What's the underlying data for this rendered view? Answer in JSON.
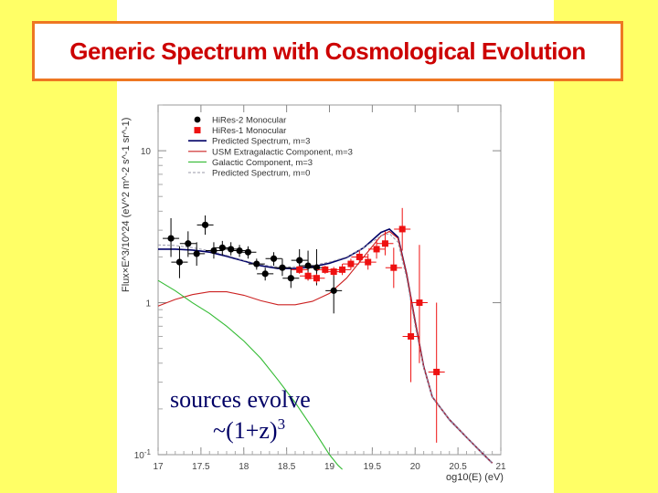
{
  "slide": {
    "title": "Generic Spectrum with Cosmological Evolution",
    "annotation_line1": "sources evolve",
    "annotation_line2": "~(1+z)",
    "annotation_sup": "3"
  },
  "colors": {
    "background": "#ffff66",
    "panel": "#ffffff",
    "title_text": "#cc0000",
    "title_border": "#ee7722",
    "hires2": "#000000",
    "hires1": "#ee1111",
    "predicted_m3": "#000066",
    "usm_extragalactic": "#cc2222",
    "galactic": "#33bb33",
    "predicted_m0": "#9999aa"
  },
  "chart_data": {
    "type": "scatter",
    "title": "",
    "xlabel": "og10(E) (eV)",
    "ylabel": "Flux×E^3/10^24 (eV^2 m^-2 s^-1 sr^-1)",
    "xlim": [
      17,
      21
    ],
    "ylim": [
      0.1,
      20
    ],
    "y_scale": "log",
    "x_ticks": [
      "17",
      "17.5",
      "18",
      "18.5",
      "19",
      "19.5",
      "20",
      "20.5",
      "21"
    ],
    "y_ticks": [
      "10",
      "1",
      "10^-1"
    ],
    "legend_position": "top-left",
    "series": [
      {
        "name": "HiRes-2 Monocular",
        "kind": "points",
        "marker": "circle",
        "points": [
          {
            "x": 17.15,
            "y": 2.65,
            "lo": 2.0,
            "hi": 3.6
          },
          {
            "x": 17.25,
            "y": 1.85,
            "lo": 1.45,
            "hi": 2.35
          },
          {
            "x": 17.35,
            "y": 2.45,
            "lo": 2.0,
            "hi": 2.95
          },
          {
            "x": 17.45,
            "y": 2.1,
            "lo": 1.75,
            "hi": 2.5
          },
          {
            "x": 17.55,
            "y": 3.25,
            "lo": 2.8,
            "hi": 3.75
          },
          {
            "x": 17.65,
            "y": 2.2,
            "lo": 1.95,
            "hi": 2.5
          },
          {
            "x": 17.75,
            "y": 2.3,
            "lo": 2.05,
            "hi": 2.55
          },
          {
            "x": 17.85,
            "y": 2.25,
            "lo": 2.05,
            "hi": 2.5
          },
          {
            "x": 17.95,
            "y": 2.2,
            "lo": 2.0,
            "hi": 2.4
          },
          {
            "x": 18.05,
            "y": 2.15,
            "lo": 1.95,
            "hi": 2.35
          },
          {
            "x": 18.15,
            "y": 1.8,
            "lo": 1.65,
            "hi": 1.95
          },
          {
            "x": 18.25,
            "y": 1.55,
            "lo": 1.4,
            "hi": 1.7
          },
          {
            "x": 18.35,
            "y": 1.95,
            "lo": 1.75,
            "hi": 2.15
          },
          {
            "x": 18.45,
            "y": 1.7,
            "lo": 1.5,
            "hi": 1.95
          },
          {
            "x": 18.55,
            "y": 1.45,
            "lo": 1.25,
            "hi": 1.7
          },
          {
            "x": 18.65,
            "y": 1.9,
            "lo": 1.6,
            "hi": 2.25
          },
          {
            "x": 18.75,
            "y": 1.75,
            "lo": 1.4,
            "hi": 2.2
          },
          {
            "x": 18.85,
            "y": 1.7,
            "lo": 1.3,
            "hi": 2.25
          },
          {
            "x": 19.05,
            "y": 1.2,
            "lo": 0.85,
            "hi": 1.65
          }
        ]
      },
      {
        "name": "HiRes-1 Monocular",
        "kind": "points",
        "marker": "square",
        "points": [
          {
            "x": 18.65,
            "y": 1.65,
            "lo": 1.55,
            "hi": 1.75
          },
          {
            "x": 18.75,
            "y": 1.5,
            "lo": 1.4,
            "hi": 1.6
          },
          {
            "x": 18.85,
            "y": 1.45,
            "lo": 1.35,
            "hi": 1.55
          },
          {
            "x": 18.95,
            "y": 1.65,
            "lo": 1.55,
            "hi": 1.75
          },
          {
            "x": 19.05,
            "y": 1.6,
            "lo": 1.5,
            "hi": 1.72
          },
          {
            "x": 19.15,
            "y": 1.65,
            "lo": 1.52,
            "hi": 1.8
          },
          {
            "x": 19.25,
            "y": 1.8,
            "lo": 1.65,
            "hi": 1.95
          },
          {
            "x": 19.35,
            "y": 2.0,
            "lo": 1.82,
            "hi": 2.2
          },
          {
            "x": 19.45,
            "y": 1.85,
            "lo": 1.65,
            "hi": 2.1
          },
          {
            "x": 19.55,
            "y": 2.25,
            "lo": 1.95,
            "hi": 2.6
          },
          {
            "x": 19.65,
            "y": 2.45,
            "lo": 2.05,
            "hi": 2.95
          },
          {
            "x": 19.75,
            "y": 1.7,
            "lo": 1.25,
            "hi": 2.3
          },
          {
            "x": 19.85,
            "y": 3.05,
            "lo": 2.2,
            "hi": 4.2
          },
          {
            "x": 19.95,
            "y": 0.6,
            "lo": 0.3,
            "hi": 1.1
          },
          {
            "x": 20.05,
            "y": 1.0,
            "lo": 0.4,
            "hi": 2.4
          },
          {
            "x": 20.25,
            "y": 0.35,
            "lo": 0.12,
            "hi": 1.0
          }
        ]
      },
      {
        "name": "Predicted Spectrum, m=3",
        "kind": "line",
        "x": [
          17.0,
          17.2,
          17.4,
          17.6,
          17.8,
          18.0,
          18.2,
          18.4,
          18.6,
          18.8,
          19.0,
          19.2,
          19.4,
          19.6,
          19.7,
          19.8,
          19.9,
          20.0,
          20.1,
          20.2,
          20.4,
          20.6,
          20.8,
          20.9
        ],
        "y": [
          2.25,
          2.25,
          2.22,
          2.15,
          2.02,
          1.88,
          1.75,
          1.68,
          1.68,
          1.72,
          1.82,
          1.98,
          2.3,
          2.9,
          3.05,
          2.7,
          1.55,
          0.75,
          0.38,
          0.24,
          0.17,
          0.13,
          0.1,
          0.088
        ]
      },
      {
        "name": "USM Extragalactic Component, m=3",
        "kind": "line",
        "x": [
          17.0,
          17.2,
          17.4,
          17.6,
          17.8,
          18.0,
          18.2,
          18.4,
          18.6,
          18.8,
          19.0,
          19.2,
          19.4,
          19.6,
          19.7,
          19.8,
          19.9,
          20.0,
          20.1,
          20.2,
          20.4,
          20.6,
          20.8,
          20.9
        ],
        "y": [
          0.95,
          1.05,
          1.13,
          1.18,
          1.18,
          1.12,
          1.03,
          0.97,
          0.97,
          1.02,
          1.15,
          1.45,
          2.0,
          2.75,
          2.95,
          2.65,
          1.55,
          0.75,
          0.38,
          0.24,
          0.17,
          0.13,
          0.1,
          0.088
        ]
      },
      {
        "name": "Galactic Component, m=3",
        "kind": "line",
        "x": [
          17.0,
          17.2,
          17.4,
          17.6,
          17.8,
          18.0,
          18.2,
          18.4,
          18.6,
          18.8,
          19.0,
          19.1,
          19.15
        ],
        "y": [
          1.4,
          1.2,
          1.0,
          0.85,
          0.7,
          0.56,
          0.43,
          0.31,
          0.22,
          0.15,
          0.1,
          0.085,
          0.08
        ]
      },
      {
        "name": "Predicted Spectrum, m=0",
        "kind": "line",
        "x": [
          17.0,
          17.2,
          17.4,
          17.6,
          17.8,
          18.0,
          18.2,
          18.4,
          18.6,
          18.8,
          19.0,
          19.2,
          19.4,
          19.6,
          19.7,
          19.8,
          19.9,
          20.0,
          20.1,
          20.2,
          20.4,
          20.6,
          20.8,
          20.9
        ],
        "y": [
          2.4,
          2.38,
          2.3,
          2.2,
          2.05,
          1.9,
          1.78,
          1.72,
          1.72,
          1.76,
          1.85,
          2.0,
          2.3,
          2.75,
          2.85,
          2.5,
          1.45,
          0.7,
          0.37,
          0.24,
          0.17,
          0.13,
          0.1,
          0.088
        ]
      }
    ]
  }
}
